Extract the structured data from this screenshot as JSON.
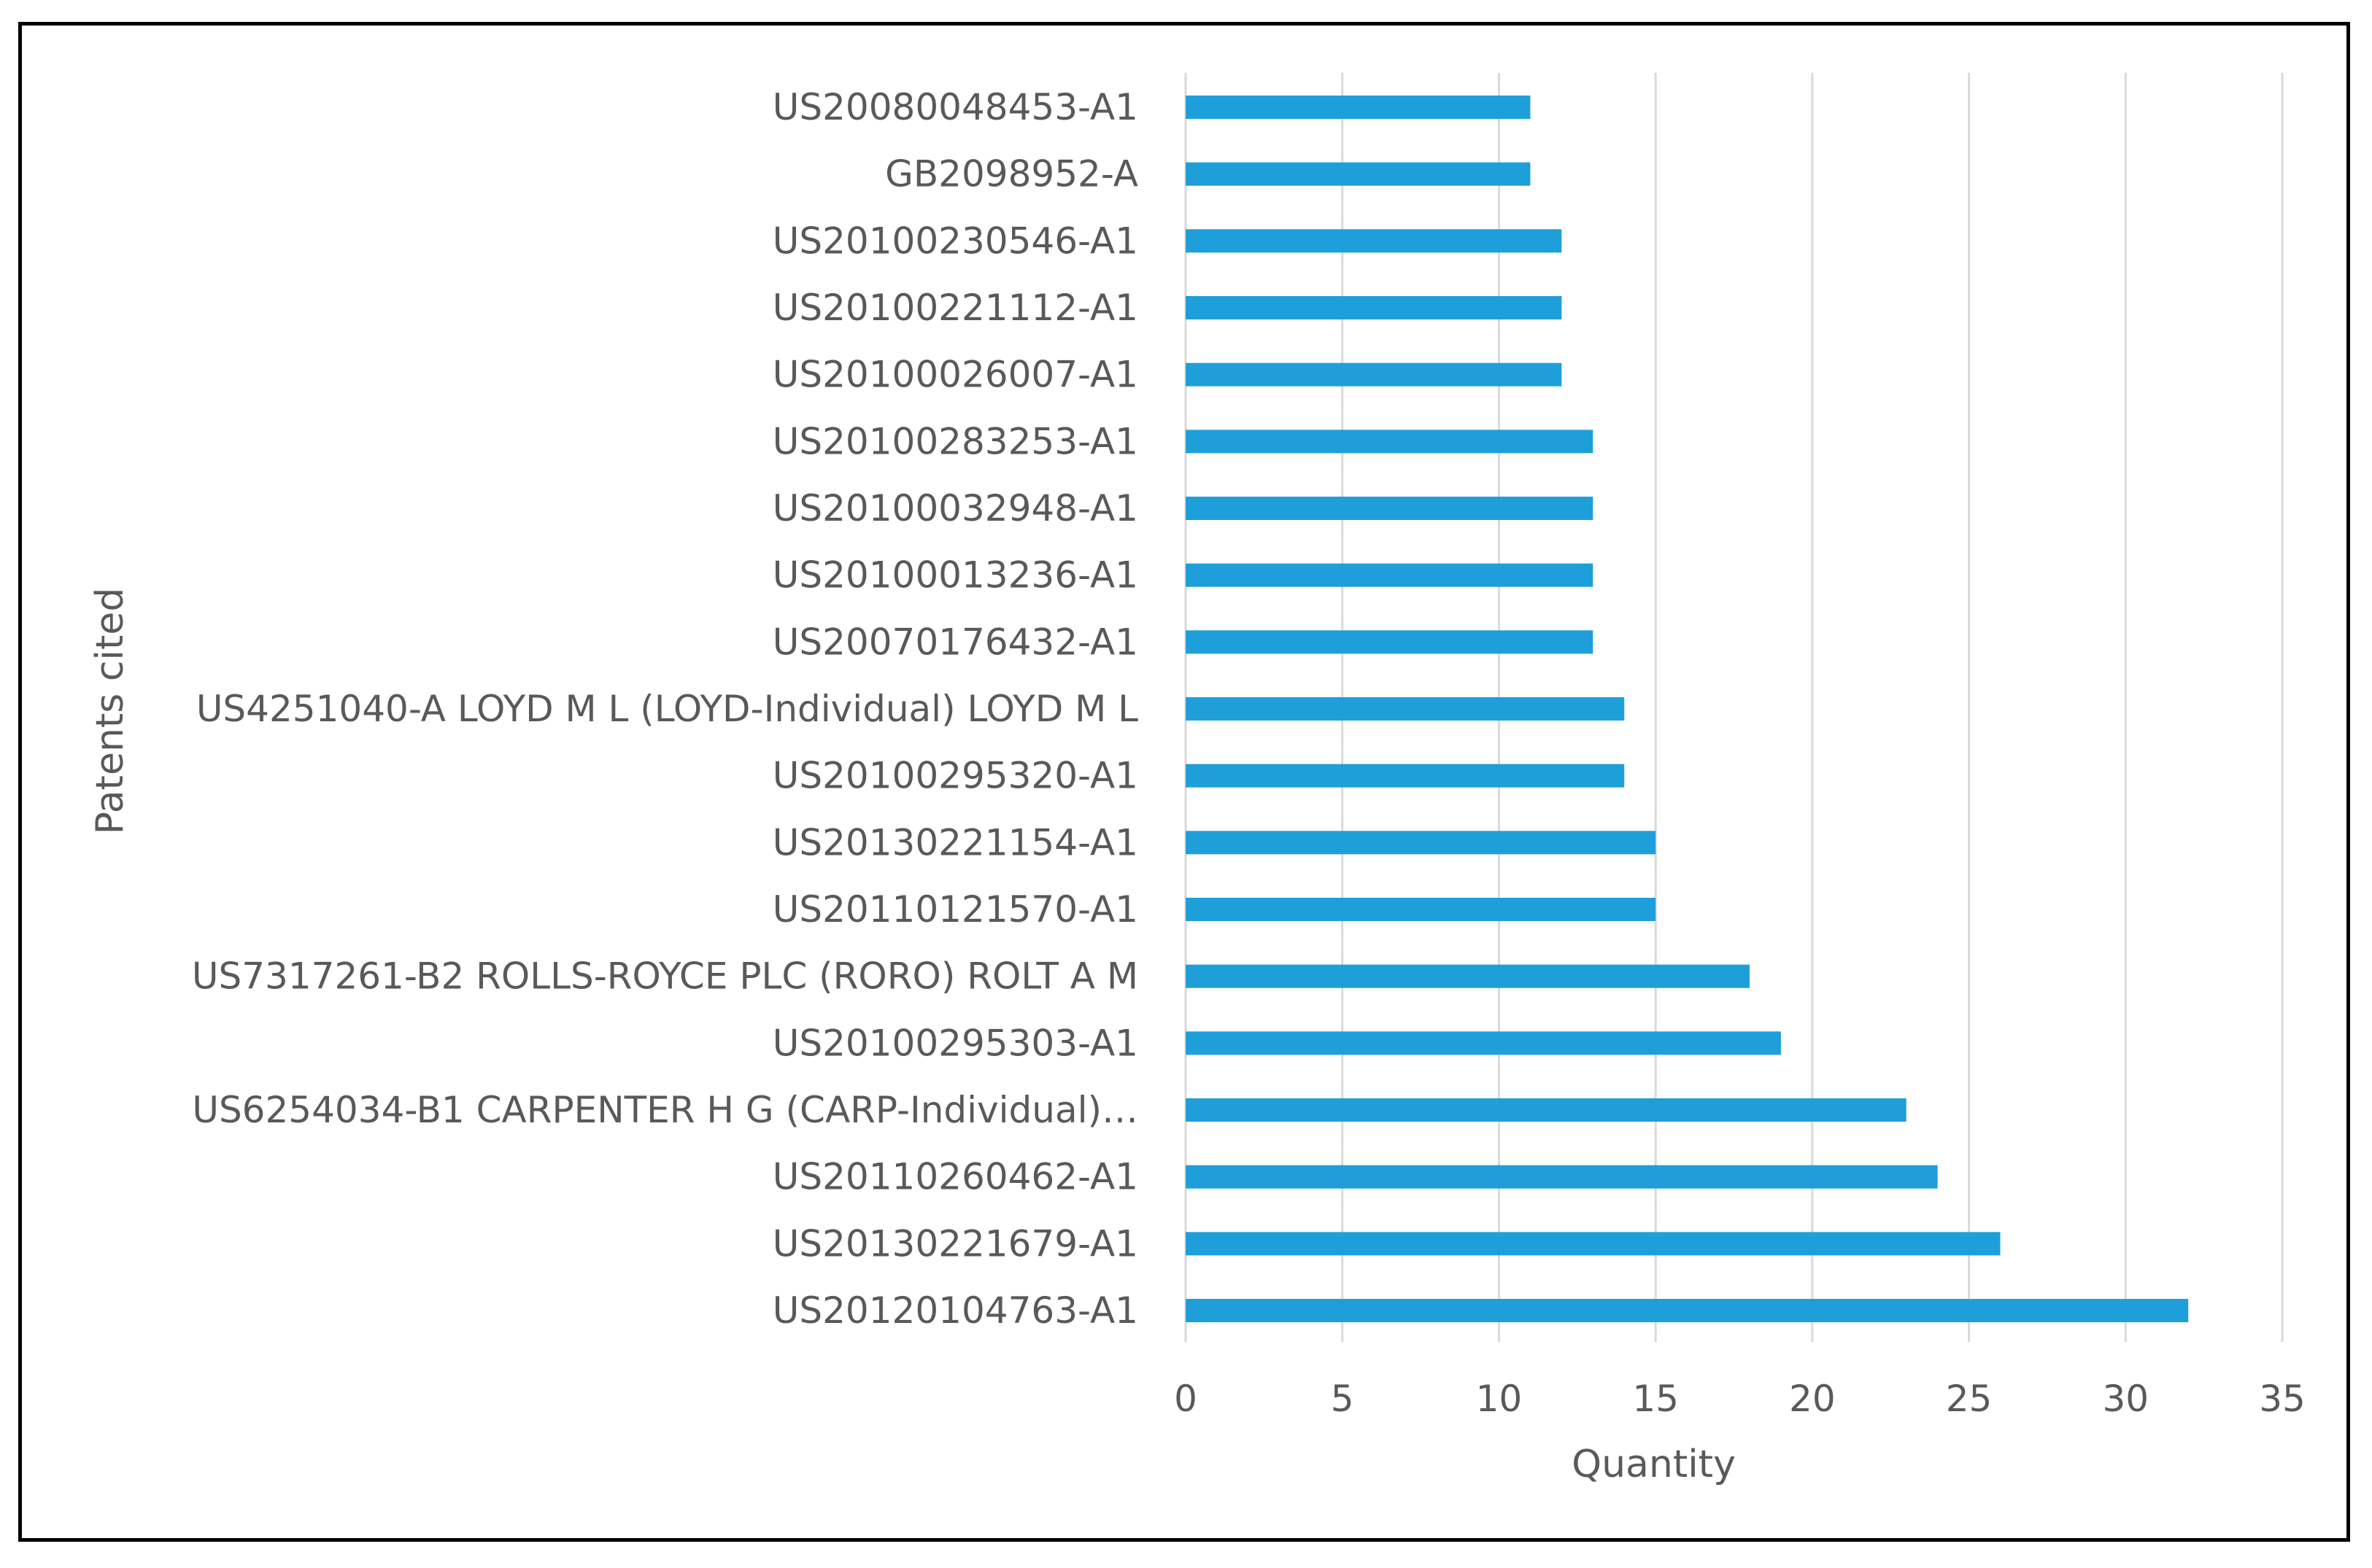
{
  "chart_data": {
    "type": "bar",
    "orientation": "horizontal",
    "categories": [
      "US20080048453-A1",
      "GB2098952-A",
      "US20100230546-A1",
      "US20100221112-A1",
      "US20100026007-A1",
      "US20100283253-A1",
      "US20100032948-A1",
      "US20100013236-A1",
      "US20070176432-A1",
      "US4251040-A LOYD M L (LOYD-Individual) LOYD M L",
      "US20100295320-A1",
      "US20130221154-A1",
      "US20110121570-A1",
      "US7317261-B2 ROLLS-ROYCE PLC (RORO) ROLT A M",
      "US20100295303-A1",
      "US6254034-B1 CARPENTER H G (CARP-Individual)…",
      "US20110260462-A1",
      "US20130221679-A1",
      "US20120104763-A1"
    ],
    "values": [
      11,
      11,
      12,
      12,
      12,
      13,
      13,
      13,
      13,
      14,
      14,
      15,
      15,
      18,
      19,
      23,
      24,
      26,
      32
    ],
    "xlabel": "Quantity",
    "ylabel": "Patents cited",
    "xlim": [
      0,
      35
    ],
    "xticks": [
      "0",
      "5",
      "10",
      "15",
      "20",
      "25",
      "30",
      "35"
    ],
    "grid": "vertical",
    "bar_color": "#1e9fd9",
    "grid_color": "#d9d9d9",
    "text_color": "#595959"
  }
}
